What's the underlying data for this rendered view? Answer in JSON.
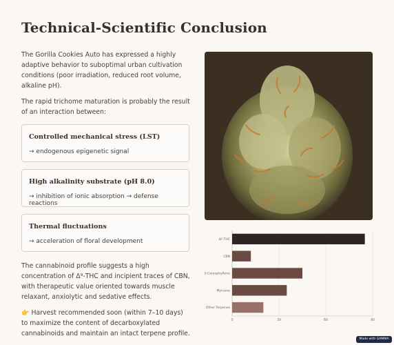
{
  "page": {
    "title": "Technical-Scientific Conclusion",
    "paragraphs": [
      "The Gorilla Cookies Auto has expressed a highly adaptive behavior to suboptimal urban cultivation conditions (poor irradiation, reduced root volume, alkaline pH).",
      "The rapid trichome maturation is probably the result of an interaction between:"
    ],
    "cards": [
      {
        "title": "Controlled mechanical stress (LST)",
        "body": "→ endogenous epigenetic signal"
      },
      {
        "title": "High alkalinity substrate (pH 8.0)",
        "body": "→ inhibition of ionic absorption → defense reactions"
      },
      {
        "title": "Thermal fluctuations",
        "body": "→ acceleration of floral development"
      }
    ],
    "closing": [
      "The cannabinoid profile suggests a high concentration of Δ⁹-THC and incipient traces of CBN, with therapeutic value oriented towards muscle relaxant, anxiolytic and sedative effects.",
      "👉 Harvest recommended soon (within 7–10 days) to maximize the content of decarboxylated cannabinoids and maintain an intact terpene profile."
    ],
    "badge": "Made with GAMMA"
  },
  "colors": {
    "background": "#fbf8f4",
    "bar_dark": "#2f2423",
    "bar_mid": "#6b4a44",
    "bar_light": "#9a706a"
  },
  "chart_data": {
    "type": "bar",
    "orientation": "horizontal",
    "categories": [
      "Δ⁹-THC",
      "CBN",
      "β-Caryophyllene",
      "Myrcene",
      "Other Terpenes"
    ],
    "values": [
      85,
      12,
      45,
      35,
      20
    ],
    "xlim": [
      0,
      90
    ],
    "xticks": [
      0,
      30,
      60,
      90
    ],
    "grid": true
  }
}
